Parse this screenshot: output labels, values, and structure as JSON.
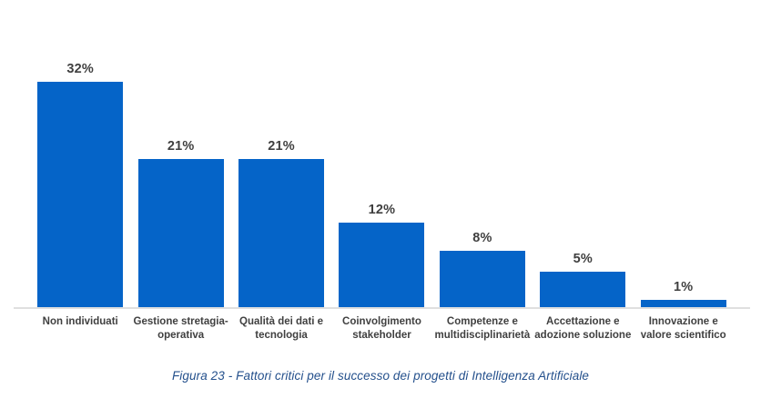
{
  "figure": {
    "caption": "Figura 23 - Fattori critici per il successo dei progetti di Intelligenza Artificiale"
  },
  "chart_data": {
    "type": "bar",
    "title": "",
    "xlabel": "",
    "ylabel": "",
    "unit": "%",
    "categories": [
      "Non individuati",
      "Gestione stretagia-operativa",
      "Qualità dei dati e tecnologia",
      "Coinvolgimento stakeholder",
      "Competenze e multidisciplinarietà",
      "Accettazione e adozione soluzione",
      "Innovazione e valore scientifico"
    ],
    "category_lines": [
      [
        "Non individuati"
      ],
      [
        "Gestione stretagia-",
        "operativa"
      ],
      [
        "Qualità dei dati e",
        "tecnologia"
      ],
      [
        "Coinvolgimento",
        "stakeholder"
      ],
      [
        "Competenze e",
        "multidisciplinarietà"
      ],
      [
        "Accettazione e",
        "adozione soluzione"
      ],
      [
        "Innovazione e",
        "valore scientifico"
      ]
    ],
    "values": [
      32,
      21,
      21,
      12,
      8,
      5,
      1
    ],
    "value_labels": [
      "32%",
      "21%",
      "21%",
      "12%",
      "8%",
      "5%",
      "1%"
    ],
    "ylim": [
      0,
      35
    ],
    "grid": false,
    "legend": "none",
    "colors": {
      "bar": "#0564c8",
      "value_label": "#3f3f3f",
      "category_label": "#404040",
      "baseline": "#dfdfdf",
      "caption": "#24508c"
    }
  }
}
